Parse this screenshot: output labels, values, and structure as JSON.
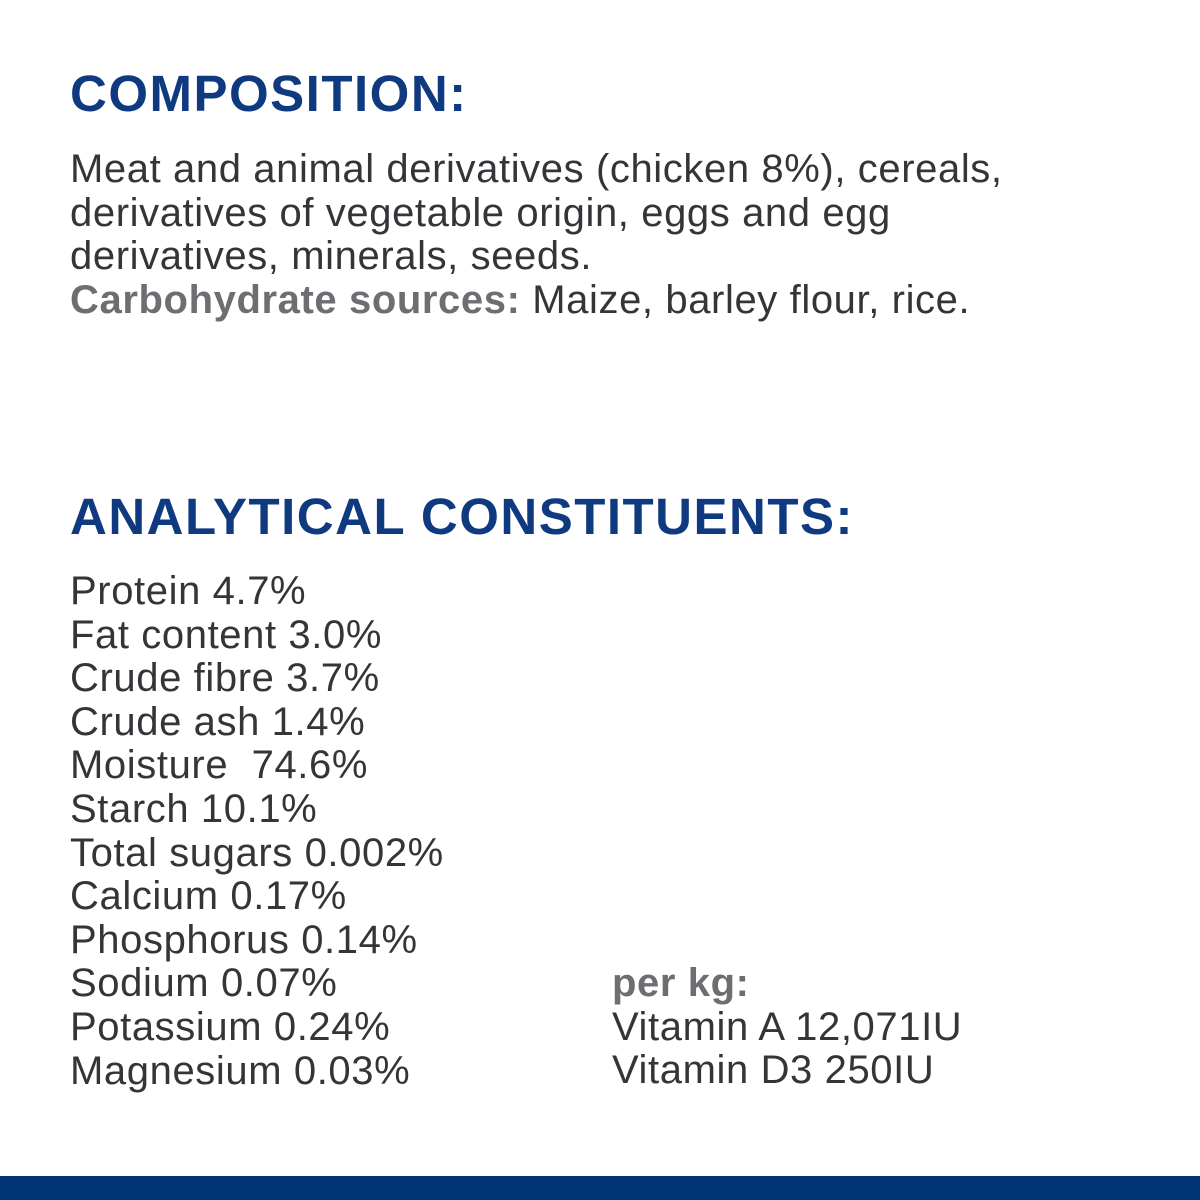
{
  "composition": {
    "title": "COMPOSITION:",
    "lines": [
      "Meat and animal derivatives (chicken 8%), cereals,",
      "derivatives of vegetable origin, eggs and egg",
      "derivatives, minerals, seeds."
    ],
    "carb_label": "Carbohydrate sources:",
    "carb_value": " Maize, barley flour, rice."
  },
  "analytical": {
    "title": "ANALYTICAL CONSTITUENTS:",
    "items": [
      "Protein 4.7%",
      "Fat content 3.0%",
      "Crude fibre 3.7%",
      "Crude ash 1.4%",
      "Moisture  74.6%",
      "Starch 10.1%",
      "Total sugars 0.002%",
      "Calcium 0.17%",
      "Phosphorus 0.14%",
      "Sodium 0.07%",
      "Potassium 0.24%",
      "Magnesium 0.03%"
    ],
    "per_kg": {
      "label": "per kg:",
      "items": [
        "Vitamin A 12,071IU",
        "Vitamin D3 250IU"
      ]
    }
  },
  "colors": {
    "heading": "#0f3a80",
    "text": "#333538",
    "label_gray": "#6d6e71",
    "footer_bar": "#003477"
  }
}
